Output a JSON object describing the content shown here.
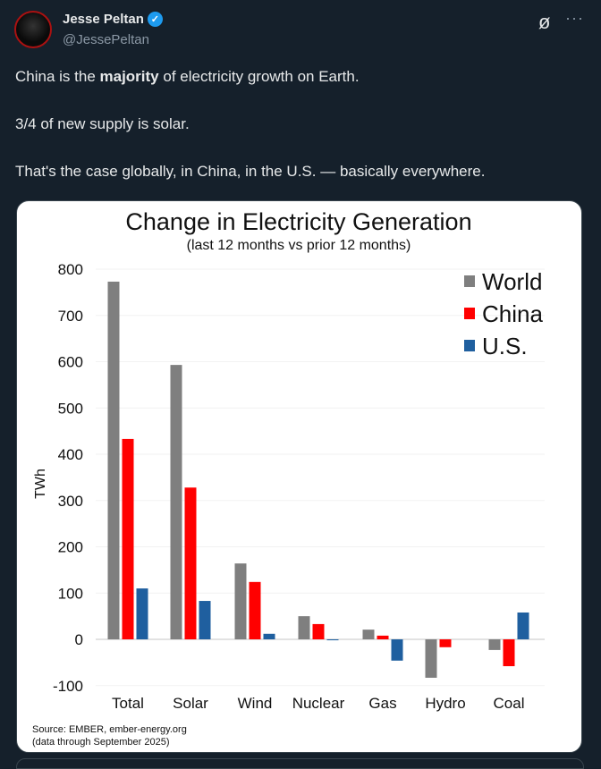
{
  "author": {
    "name": "Jesse Peltan",
    "handle": "@JessePeltan",
    "verified": true
  },
  "icons": {
    "grok": "grok-icon",
    "more": "more-icon"
  },
  "tweet": {
    "line1_pre": "China is the ",
    "line1_bold": "majority",
    "line1_post": " of electricity growth on Earth.",
    "line2": "3/4 of new supply is solar.",
    "line3": "That's the case globally, in China, in the U.S. — basically everywhere."
  },
  "chart_data": {
    "type": "bar",
    "title": "Change in Electricity Generation",
    "subtitle": "(last 12 months vs prior 12 months)",
    "ylabel": "TWh",
    "xlabel": "",
    "ylim": [
      -100,
      800
    ],
    "yticks": [
      800,
      700,
      600,
      500,
      400,
      300,
      200,
      100,
      0,
      -100
    ],
    "grid": true,
    "legend_position": "top-right",
    "categories": [
      "Total",
      "Solar",
      "Wind",
      "Nuclear",
      "Gas",
      "Hydro",
      "Coal"
    ],
    "series": [
      {
        "name": "World",
        "color": "#7f7f7f",
        "values": [
          773,
          593,
          164,
          50,
          21,
          -83,
          -23
        ]
      },
      {
        "name": "China",
        "color": "#ff0000",
        "values": [
          433,
          328,
          124,
          33,
          8,
          -17,
          -58
        ]
      },
      {
        "name": "U.S.",
        "color": "#1f5f9f",
        "values": [
          110,
          83,
          12,
          -2,
          -46,
          0,
          58
        ]
      }
    ],
    "source_line1": "Source: EMBER, ember-energy.org",
    "source_line2": "(data through September 2025)"
  }
}
